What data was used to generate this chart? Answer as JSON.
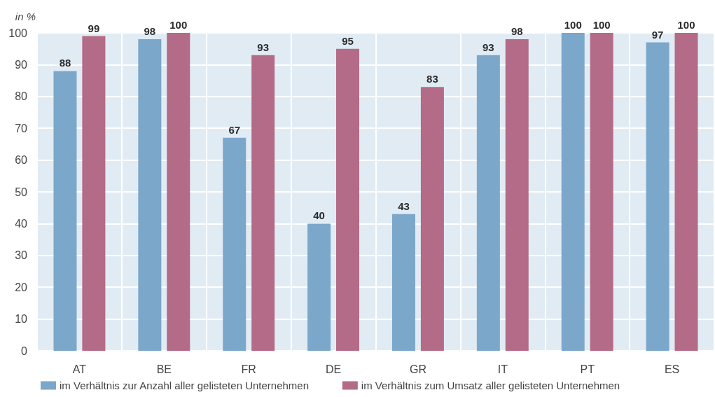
{
  "chart_data": {
    "type": "bar",
    "ylabel": "in %",
    "categories": [
      "AT",
      "BE",
      "FR",
      "DE",
      "GR",
      "IT",
      "PT",
      "ES"
    ],
    "series": [
      {
        "name": "im Verhältnis zur Anzahl aller gelisteten Unternehmen",
        "color": "#7ba7cb",
        "values": [
          88,
          98,
          67,
          40,
          43,
          93,
          100,
          97
        ]
      },
      {
        "name": "im Verhältnis zum Umsatz aller gelisteten Unternehmen",
        "color": "#b36b87",
        "values": [
          99,
          100,
          93,
          95,
          83,
          98,
          100,
          100
        ]
      }
    ],
    "ylim": [
      0,
      100
    ],
    "yticks": [
      0,
      10,
      20,
      30,
      40,
      50,
      60,
      70,
      80,
      90,
      100
    ],
    "data_labels": true,
    "grid": true,
    "legend": "bottom"
  }
}
